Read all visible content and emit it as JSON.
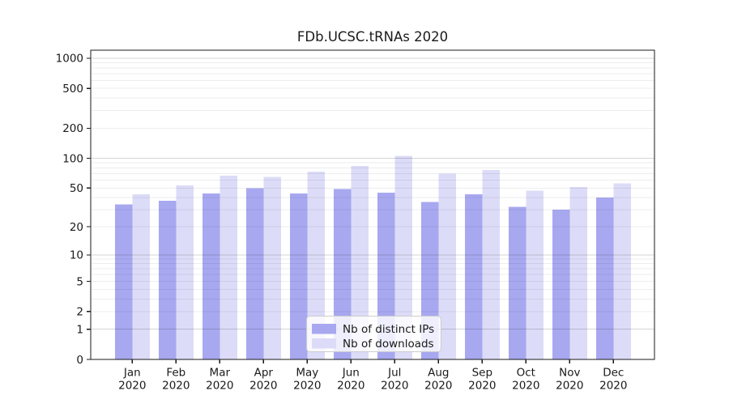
{
  "chart_data": {
    "type": "bar",
    "title": "FDb.UCSC.tRNAs 2020",
    "categories": [
      "Jan",
      "Feb",
      "Mar",
      "Apr",
      "May",
      "Jun",
      "Jul",
      "Aug",
      "Sep",
      "Oct",
      "Nov",
      "Dec"
    ],
    "category_year": "2020",
    "series": [
      {
        "name": "Nb of distinct IPs",
        "color": "#a8a8f0",
        "values": [
          34,
          37,
          44,
          50,
          44,
          49,
          45,
          36,
          43,
          32,
          30,
          40
        ]
      },
      {
        "name": "Nb of downloads",
        "color": "#dcdcf8",
        "values": [
          43,
          53,
          67,
          65,
          73,
          84,
          106,
          70,
          76,
          47,
          51,
          56
        ]
      }
    ],
    "xlabel": "",
    "ylabel": "",
    "y_scale": "log1p",
    "y_ticks": [
      0,
      1,
      2,
      5,
      10,
      20,
      50,
      100,
      200,
      500,
      1000
    ],
    "ylim": [
      0,
      1100
    ],
    "grid": "horizontal major at powers of 10, faint log minors",
    "legend_position": "inside bottom center"
  },
  "colors": {
    "background": "#ffffff",
    "bar_ips": "#a8a8f0",
    "bar_downloads": "#dcdcf8",
    "axis_frame": "#1a1a1a",
    "grid_major": "#d6d6d6",
    "grid_minor": "#ececec",
    "legend_border": "#cccccc",
    "text": "#1a1a1a"
  }
}
